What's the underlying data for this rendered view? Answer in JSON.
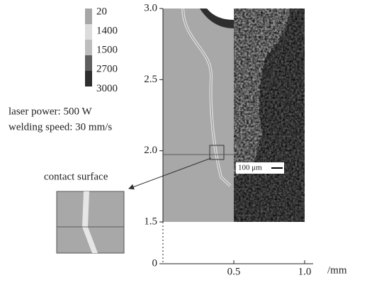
{
  "chart_data": {
    "type": "image",
    "ylim": [
      1.5,
      3.0
    ],
    "yticks": [
      {
        "value": 3,
        "label": "3.0"
      },
      2.5,
      {
        "value": 2,
        "label": "2.0"
      },
      1.5,
      0
    ],
    "xlim": [
      0,
      1.0
    ],
    "xticks": [
      0.5,
      {
        "value": 1,
        "label": "1.0"
      }
    ],
    "x_label": "/mm",
    "colorbar": {
      "labels": [
        20,
        1400,
        1500,
        2700,
        3000
      ],
      "colors": [
        "#a6a6a6",
        "#dcdcdc",
        "#bdbdbd",
        "#5e5e5e",
        "#2e2e2e"
      ]
    },
    "annotations": {
      "laser_power": "laser power: 500 W",
      "welding_speed": "welding speed: 30 mm/s",
      "contact_surface": "contact surface",
      "scale_bar": "100 μm"
    }
  }
}
